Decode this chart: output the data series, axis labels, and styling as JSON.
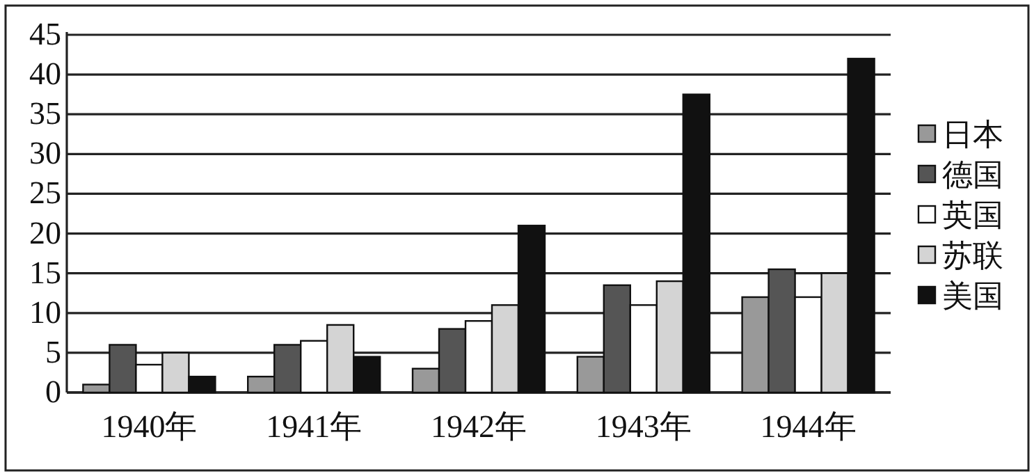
{
  "chart_data": {
    "type": "bar",
    "categories": [
      "1940年",
      "1941年",
      "1942年",
      "1943年",
      "1944年"
    ],
    "series": [
      {
        "name": "日本",
        "color": "#999999",
        "values": [
          1,
          2,
          3,
          4.5,
          12
        ]
      },
      {
        "name": "德国",
        "color": "#555555",
        "values": [
          6,
          6,
          8,
          13.5,
          15.5
        ]
      },
      {
        "name": "英国",
        "color": "#ffffff",
        "values": [
          3.5,
          6.5,
          9,
          11,
          12
        ]
      },
      {
        "name": "苏联",
        "color": "#d4d4d4",
        "values": [
          5,
          8.5,
          11,
          14,
          15
        ]
      },
      {
        "name": "美国",
        "color": "#111111",
        "values": [
          2,
          4.5,
          21,
          37.5,
          42
        ]
      }
    ],
    "ylim": [
      0,
      45
    ],
    "yticks": [
      0,
      5,
      10,
      15,
      20,
      25,
      30,
      35,
      40,
      45
    ],
    "grid": "y",
    "legend": "right"
  }
}
